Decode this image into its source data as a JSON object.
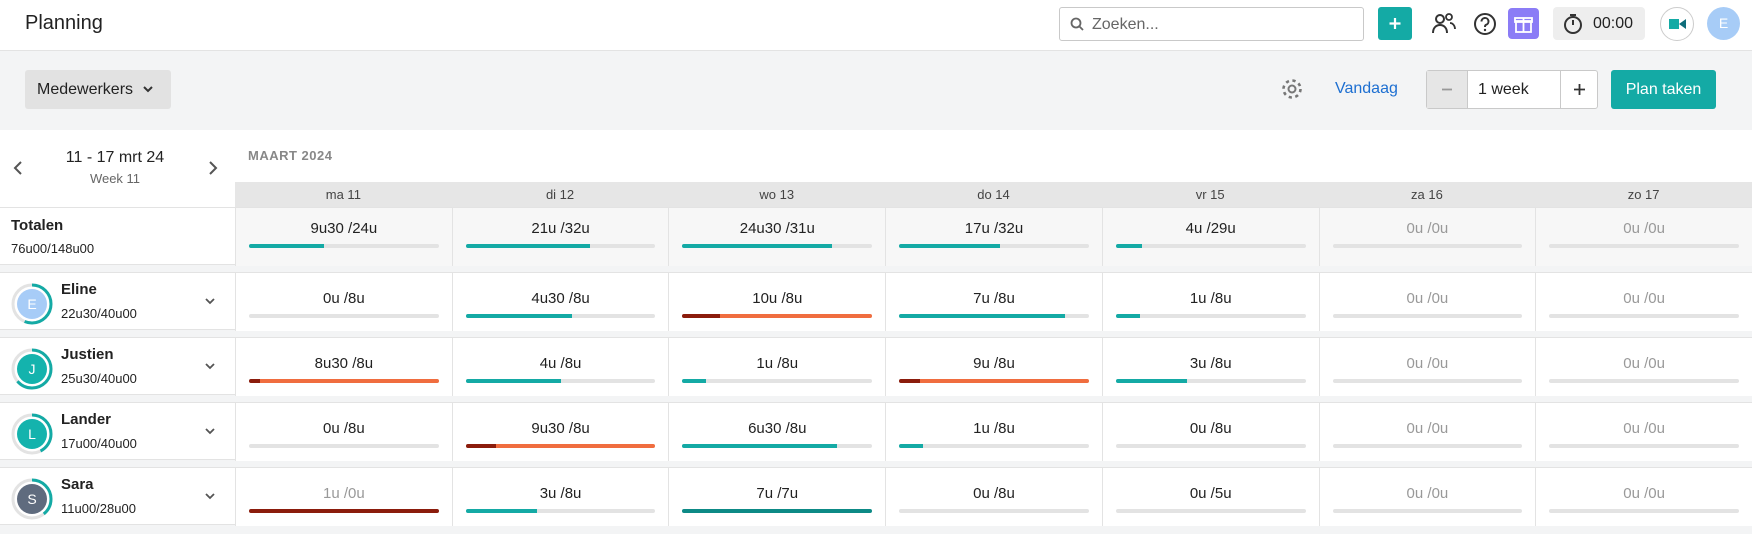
{
  "header": {
    "title": "Planning",
    "search_placeholder": "Zoeken...",
    "timer": "00:00",
    "user_initial": "E"
  },
  "toolbar": {
    "view": "Medewerkers",
    "today": "Vandaag",
    "period": "1 week",
    "plan_button": "Plan taken"
  },
  "planner": {
    "range": "11 - 17 mrt 24",
    "week": "Week 11",
    "month": "MAART 2024",
    "days": [
      "ma 11",
      "di 12",
      "wo 13",
      "do 14",
      "vr 15",
      "za 16",
      "zo 17"
    ],
    "totals": {
      "label": "Totalen",
      "hours": "76u00/148u00",
      "cells": [
        "9u30 /24u",
        "21u /32u",
        "24u30 /31u",
        "17u /32u",
        "4u /29u",
        "0u /0u",
        "0u /0u"
      ]
    },
    "employees": [
      {
        "name": "Eline",
        "initial": "E",
        "avatar_color": "#a7ccf7",
        "hours": "22u30/40u00",
        "cells": [
          "0u /8u",
          "4u30 /8u",
          "10u /8u",
          "7u /8u",
          "1u /8u",
          "0u /0u",
          "0u /0u"
        ]
      },
      {
        "name": "Justien",
        "initial": "J",
        "avatar_color": "#14b3ad",
        "hours": "25u30/40u00",
        "cells": [
          "8u30 /8u",
          "4u /8u",
          "1u /8u",
          "9u /8u",
          "3u /8u",
          "0u /0u",
          "0u /0u"
        ]
      },
      {
        "name": "Lander",
        "initial": "L",
        "avatar_color": "#14b3ad",
        "hours": "17u00/40u00",
        "cells": [
          "0u /8u",
          "9u30 /8u",
          "6u30 /8u",
          "1u /8u",
          "0u /8u",
          "0u /0u",
          "0u /0u"
        ]
      },
      {
        "name": "Sara",
        "initial": "S",
        "avatar_color": "#5f6b7e",
        "hours": "11u00/28u00",
        "cells": [
          "1u /0u",
          "3u /8u",
          "7u /7u",
          "0u /8u",
          "0u /5u",
          "0u /0u",
          "0u /0u"
        ]
      }
    ]
  }
}
